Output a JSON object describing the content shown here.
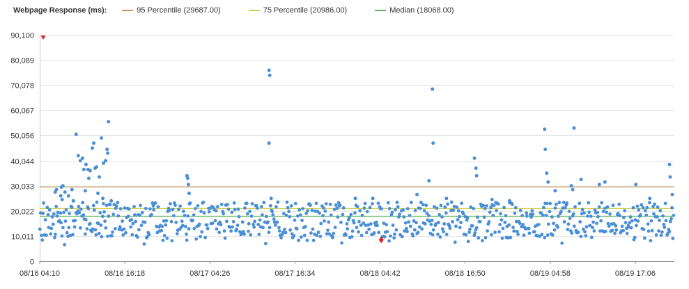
{
  "chart_data": {
    "type": "scatter",
    "title": "Webpage Response (ms):",
    "ylim": [
      0,
      90100
    ],
    "y_ticks": [
      0,
      10011,
      20022,
      30033,
      40044,
      50056,
      60067,
      70078,
      80089,
      90100
    ],
    "y_tick_labels": [
      "0",
      "10,011",
      "20,022",
      "30,033",
      "40,044",
      "50,056",
      "60,067",
      "70,078",
      "80,089",
      "90,100"
    ],
    "x_tick_labels": [
      "08/16 04:10",
      "08/16 16:18",
      "08/17 04:26",
      "08/17 16:34",
      "08/18 04:42",
      "08/18 16:50",
      "08/19 04:58",
      "08/19 17:06"
    ],
    "grid": "horizontal",
    "legend_placement": "top",
    "reference_lines": [
      {
        "name": "95 Percentile (29687.00)",
        "value": 29687,
        "color": "#c8965a"
      },
      {
        "name": "75 Percentile (20986.00)",
        "value": 20986,
        "color": "#d1cf55"
      },
      {
        "name": "Median (18068.00)",
        "value": 18068,
        "color": "#5ab55a"
      }
    ],
    "point_color": "#4a8fd6",
    "marker_color": "#e8201f",
    "max_marker": {
      "x_hour": 0.5,
      "value": 90100
    },
    "min_marker": {
      "x_hour": 48.7,
      "value": 8500
    },
    "x_range_hours": [
      0,
      90.5
    ],
    "x_tick_hours": [
      0,
      12.133,
      24.267,
      36.4,
      48.533,
      60.667,
      72.8,
      84.933
    ],
    "outliers": [
      [
        2.2,
        27500
      ],
      [
        2.4,
        28500
      ],
      [
        3.0,
        26000
      ],
      [
        3.2,
        24500
      ],
      [
        3.1,
        29500
      ],
      [
        3.6,
        27500
      ],
      [
        4.1,
        26000
      ],
      [
        4.8,
        24000
      ],
      [
        3.3,
        30000
      ],
      [
        4.6,
        28500
      ],
      [
        5.2,
        50500
      ],
      [
        5.5,
        42000
      ],
      [
        5.8,
        40000
      ],
      [
        6.1,
        41000
      ],
      [
        6.3,
        36500
      ],
      [
        6.6,
        38500
      ],
      [
        6.9,
        36500
      ],
      [
        7.2,
        36000
      ],
      [
        7.5,
        45000
      ],
      [
        7.7,
        47000
      ],
      [
        7.9,
        37000
      ],
      [
        8.1,
        37500
      ],
      [
        8.5,
        33500
      ],
      [
        8.8,
        49000
      ],
      [
        9.1,
        39000
      ],
      [
        9.4,
        40000
      ],
      [
        9.6,
        44500
      ],
      [
        9.7,
        43000
      ],
      [
        9.8,
        55500
      ],
      [
        6.5,
        28000
      ],
      [
        7.0,
        33000
      ],
      [
        8.3,
        27000
      ],
      [
        9.0,
        25000
      ],
      [
        10.2,
        24000
      ],
      [
        21.0,
        34000
      ],
      [
        21.1,
        33000
      ],
      [
        21.2,
        30500
      ],
      [
        21.3,
        27000
      ],
      [
        32.7,
        76000
      ],
      [
        32.8,
        74000
      ],
      [
        32.7,
        47000
      ],
      [
        33.0,
        25000
      ],
      [
        45.0,
        25000
      ],
      [
        47.5,
        25000
      ],
      [
        53.8,
        26500
      ],
      [
        55.5,
        32000
      ],
      [
        56.0,
        68500
      ],
      [
        56.1,
        47000
      ],
      [
        58.0,
        25000
      ],
      [
        62.0,
        41000
      ],
      [
        62.2,
        37000
      ],
      [
        62.3,
        34000
      ],
      [
        64.5,
        24500
      ],
      [
        67.0,
        24000
      ],
      [
        72.0,
        52500
      ],
      [
        72.1,
        44500
      ],
      [
        72.3,
        35000
      ],
      [
        72.5,
        31500
      ],
      [
        73.5,
        28000
      ],
      [
        75.8,
        30000
      ],
      [
        76.0,
        28500
      ],
      [
        76.2,
        53000
      ],
      [
        77.2,
        32500
      ],
      [
        79.8,
        30500
      ],
      [
        80.6,
        31500
      ],
      [
        85.0,
        30500
      ],
      [
        87.0,
        25000
      ],
      [
        89.8,
        38500
      ],
      [
        89.9,
        33500
      ],
      [
        90.2,
        26500
      ]
    ]
  }
}
